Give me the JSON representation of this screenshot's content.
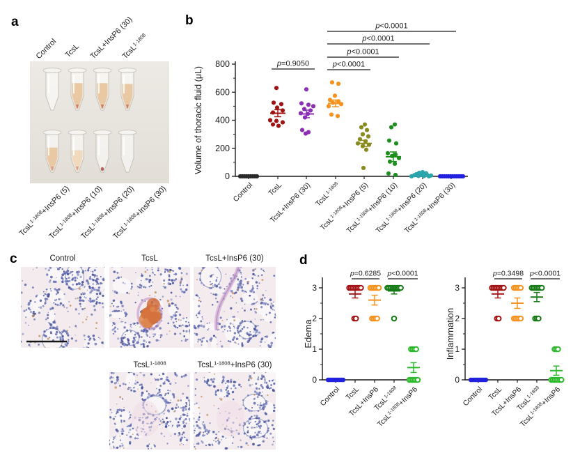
{
  "figure": {
    "panels": {
      "a": "a",
      "b": "b",
      "c": "c",
      "d": "d"
    },
    "panel_a": {
      "top_labels": [
        "Control",
        "TcsL",
        "TcsL+InsP6 (30)",
        "TcsL^{1-1808}"
      ],
      "bottom_labels": [
        "TcsL^{1-1808}+InsP6 (5)",
        "TcsL^{1-1808}+InsP6 (10)",
        "TcsL^{1-1808}+InsP6 (20)",
        "TcsL^{1-1808}+InsP6 (30)"
      ],
      "tubes": {
        "top": [
          {
            "name": "Control",
            "fluid": "none"
          },
          {
            "name": "TcsL",
            "fluid": "tan",
            "level": 0.55,
            "tip": "red"
          },
          {
            "name": "TcsL+InsP6 (30)",
            "fluid": "tan",
            "level": 0.55,
            "tip": "red"
          },
          {
            "name": "TcsL1-1808",
            "fluid": "tan",
            "level": 0.52,
            "tip": "red"
          }
        ],
        "bottom": [
          {
            "name": "TcsL1-1808+InsP6 (5)",
            "fluid": "tan",
            "level": 0.45,
            "tip": "pink"
          },
          {
            "name": "TcsL1-1808+InsP6 (10)",
            "fluid": "tanlight",
            "level": 0.34,
            "tip": "pink"
          },
          {
            "name": "TcsL1-1808+InsP6 (20)",
            "fluid": "pellet"
          },
          {
            "name": "TcsL1-1808+InsP6 (30)",
            "fluid": "none"
          }
        ]
      }
    },
    "panel_c": {
      "images": [
        {
          "label": "Control",
          "feature": "normal"
        },
        {
          "label": "TcsL",
          "feature": "hemorrhage"
        },
        {
          "label": "TcsL+InsP6 (30)",
          "feature": "vessel"
        },
        {
          "label": "TcsL^{1-1808}",
          "feature": "mild"
        },
        {
          "label": "TcsL^{1-1808}+InsP6 (30)",
          "feature": "mild"
        }
      ],
      "has_scale_bar": true
    }
  },
  "chart_data": [
    {
      "type": "scatter",
      "title": "",
      "ylabel": "Volume of thoracic fluid (μL)",
      "ylim": [
        0,
        800
      ],
      "yticks": [
        0,
        200,
        400,
        600,
        800
      ],
      "yminor": 100,
      "grid": false,
      "categories": [
        "Control",
        "TcsL",
        "TcsL+InsP6 (30)",
        "TcsL^{1-1808}",
        "TcsL^{1-1808}+InsP6 (5)",
        "TcsL^{1-1808}+InsP6 (10)",
        "TcsL^{1-1808}+InsP6 (20)",
        "TcsL^{1-1808}+InsP6 (30)"
      ],
      "series": [
        {
          "name": "Control",
          "color": "#2b2b2b",
          "marker": "filled",
          "mean": null,
          "sem": null,
          "points": [
            [
              0,
              -12
            ],
            [
              0,
              -9
            ],
            [
              0,
              -6
            ],
            [
              0,
              -3
            ],
            [
              0,
              0
            ],
            [
              0,
              3
            ],
            [
              0,
              6
            ],
            [
              0,
              9
            ],
            [
              0,
              12
            ]
          ]
        },
        {
          "name": "TcsL",
          "color": "#a11313",
          "marker": "filled",
          "mean": 450,
          "sem": 25,
          "points": [
            [
              630,
              -2
            ],
            [
              525,
              -6
            ],
            [
              515,
              5
            ],
            [
              490,
              -1
            ],
            [
              470,
              7
            ],
            [
              455,
              -7
            ],
            [
              400,
              -11
            ],
            [
              395,
              -2
            ],
            [
              385,
              7
            ],
            [
              370,
              -7
            ],
            [
              360,
              1
            ]
          ]
        },
        {
          "name": "TcsL+InsP6 (30)",
          "color": "#8b2fb5",
          "marker": "filled",
          "mean": 445,
          "sem": 27,
          "points": [
            [
              620,
              0
            ],
            [
              520,
              -7
            ],
            [
              510,
              3
            ],
            [
              500,
              10
            ],
            [
              480,
              -3
            ],
            [
              470,
              6
            ],
            [
              450,
              -8
            ],
            [
              445,
              2
            ],
            [
              420,
              -2
            ],
            [
              330,
              -6
            ],
            [
              315,
              3
            ],
            [
              305,
              -1
            ]
          ]
        },
        {
          "name": "TcsL^{1-1808}",
          "color": "#f6921e",
          "marker": "filled",
          "mean": 520,
          "sem": 24,
          "points": [
            [
              670,
              -5
            ],
            [
              660,
              4
            ],
            [
              575,
              -1
            ],
            [
              545,
              -8
            ],
            [
              535,
              4
            ],
            [
              525,
              -4
            ],
            [
              515,
              8
            ],
            [
              500,
              -10
            ],
            [
              440,
              -6
            ],
            [
              430,
              3
            ]
          ]
        },
        {
          "name": "TcsL^{1-1808}+InsP6 (5)",
          "color": "#8a8b1e",
          "marker": "filled",
          "mean": 235,
          "sem": 22,
          "points": [
            [
              370,
              1
            ],
            [
              350,
              -4
            ],
            [
              330,
              4
            ],
            [
              300,
              -2
            ],
            [
              285,
              6
            ],
            [
              265,
              -6
            ],
            [
              250,
              2
            ],
            [
              235,
              -9
            ],
            [
              225,
              7
            ],
            [
              215,
              -2
            ],
            [
              190,
              3
            ],
            [
              60,
              -1
            ]
          ]
        },
        {
          "name": "TcsL^{1-1808}+InsP6 (10)",
          "color": "#1e8f1e",
          "marker": "filled",
          "mean": 140,
          "sem": 34,
          "points": [
            [
              370,
              2
            ],
            [
              350,
              -3
            ],
            [
              255,
              -6
            ],
            [
              235,
              4
            ],
            [
              165,
              -8
            ],
            [
              155,
              3
            ],
            [
              145,
              -2
            ],
            [
              130,
              8
            ],
            [
              105,
              -5
            ],
            [
              90,
              2
            ],
            [
              20,
              -7
            ],
            [
              10,
              3
            ]
          ]
        },
        {
          "name": "TcsL^{1-1808}+InsP6 (20)",
          "color": "#2aa5ad",
          "marker": "filled",
          "mean": null,
          "sem": null,
          "points": [
            [
              30,
              0
            ],
            [
              25,
              -5
            ],
            [
              22,
              5
            ],
            [
              15,
              -9
            ],
            [
              13,
              -2
            ],
            [
              12,
              6
            ],
            [
              8,
              -12
            ],
            [
              6,
              12
            ],
            [
              3,
              -6
            ],
            [
              2,
              2
            ],
            [
              0,
              -16
            ],
            [
              0,
              9
            ]
          ]
        },
        {
          "name": "TcsL^{1-1808}+InsP6 (30)",
          "color": "#2121df",
          "marker": "filled",
          "mean": null,
          "sem": null,
          "points": [
            [
              0,
              -16
            ],
            [
              0,
              -13
            ],
            [
              0,
              -10
            ],
            [
              0,
              -7
            ],
            [
              0,
              -4
            ],
            [
              0,
              -1
            ],
            [
              0,
              2
            ],
            [
              0,
              5
            ],
            [
              0,
              8
            ],
            [
              0,
              11
            ],
            [
              0,
              14
            ],
            [
              0,
              17
            ]
          ]
        }
      ],
      "comparisons": [
        {
          "label": "p=0.9050",
          "between": [
            1,
            2
          ]
        },
        {
          "label": "p<0.0001",
          "between": [
            3,
            4
          ]
        },
        {
          "label": "p<0.0001",
          "between": [
            3,
            5
          ]
        },
        {
          "label": "p<0.0001",
          "between": [
            3,
            6
          ]
        },
        {
          "label": "p<0.0001",
          "between": [
            3,
            7
          ]
        }
      ]
    },
    {
      "type": "scatter",
      "title": "",
      "ylabel": "Edema",
      "ylim": [
        0,
        3
      ],
      "yticks": [
        0,
        1,
        2,
        3
      ],
      "yminor": 0.5,
      "grid": false,
      "categories": [
        "Control",
        "TcsL",
        "TcsL+InsP6",
        "TcsL^{1-1808}",
        "TcsL^{1-1808}+InsP6"
      ],
      "series": [
        {
          "name": "Control",
          "color": "#2121df",
          "marker": "filled",
          "mean": null,
          "sem": null,
          "points": [
            0,
            0,
            0,
            0,
            0,
            0,
            0,
            0,
            0,
            0
          ]
        },
        {
          "name": "TcsL",
          "color": "#a11313",
          "marker": "open",
          "mean": 2.8,
          "sem": 0.13,
          "points": [
            3,
            3,
            3,
            3,
            3,
            3,
            3,
            3,
            2,
            2
          ]
        },
        {
          "name": "TcsL+InsP6",
          "color": "#f6921e",
          "marker": "open",
          "mean": 2.6,
          "sem": 0.16,
          "points": [
            3,
            3,
            3,
            3,
            3,
            3,
            2,
            2,
            2,
            2
          ]
        },
        {
          "name": "TcsL^{1-1808}",
          "color": "#157a15",
          "marker": "open",
          "mean": 2.9,
          "sem": 0.1,
          "points": [
            3,
            3,
            3,
            3,
            3,
            3,
            3,
            3,
            3,
            2
          ]
        },
        {
          "name": "TcsL^{1-1808}+InsP6",
          "color": "#2cba2c",
          "marker": "open",
          "mean": 0.4,
          "sem": 0.16,
          "points": [
            1,
            1,
            1,
            1,
            0,
            0,
            0,
            0,
            0,
            0
          ]
        }
      ],
      "comparisons": [
        {
          "label": "p=0.6285",
          "between": [
            1,
            2
          ]
        },
        {
          "label": "p<0.0001",
          "between": [
            3,
            4
          ]
        }
      ]
    },
    {
      "type": "scatter",
      "title": "",
      "ylabel": "Inflammation",
      "ylim": [
        0,
        3
      ],
      "yticks": [
        0,
        1,
        2,
        3
      ],
      "yminor": 0.5,
      "grid": false,
      "categories": [
        "Control",
        "TcsL",
        "TcsL+InsP6",
        "TcsL^{1-1808}",
        "TcsL^{1-1808}+InsP6"
      ],
      "series": [
        {
          "name": "Control",
          "color": "#2121df",
          "marker": "filled",
          "mean": null,
          "sem": null,
          "points": [
            0,
            0,
            0,
            0,
            0,
            0,
            0,
            0,
            0,
            0
          ]
        },
        {
          "name": "TcsL",
          "color": "#a11313",
          "marker": "open",
          "mean": 2.8,
          "sem": 0.13,
          "points": [
            3,
            3,
            3,
            3,
            3,
            3,
            3,
            3,
            2,
            2
          ]
        },
        {
          "name": "TcsL+InsP6",
          "color": "#f6921e",
          "marker": "open",
          "mean": 2.5,
          "sem": 0.17,
          "points": [
            3,
            3,
            3,
            3,
            3,
            2,
            2,
            2,
            2,
            2
          ]
        },
        {
          "name": "TcsL^{1-1808}",
          "color": "#157a15",
          "marker": "open",
          "mean": 2.7,
          "sem": 0.15,
          "points": [
            3,
            3,
            3,
            3,
            3,
            3,
            3,
            2,
            2,
            2
          ]
        },
        {
          "name": "TcsL^{1-1808}+InsP6",
          "color": "#2cba2c",
          "marker": "open",
          "mean": 0.3,
          "sem": 0.15,
          "points": [
            1,
            1,
            1,
            0,
            0,
            0,
            0,
            0,
            0,
            0
          ]
        }
      ],
      "comparisons": [
        {
          "label": "p=0.3498",
          "between": [
            1,
            2
          ]
        },
        {
          "label": "p<0.0001",
          "between": [
            3,
            4
          ]
        }
      ]
    }
  ]
}
